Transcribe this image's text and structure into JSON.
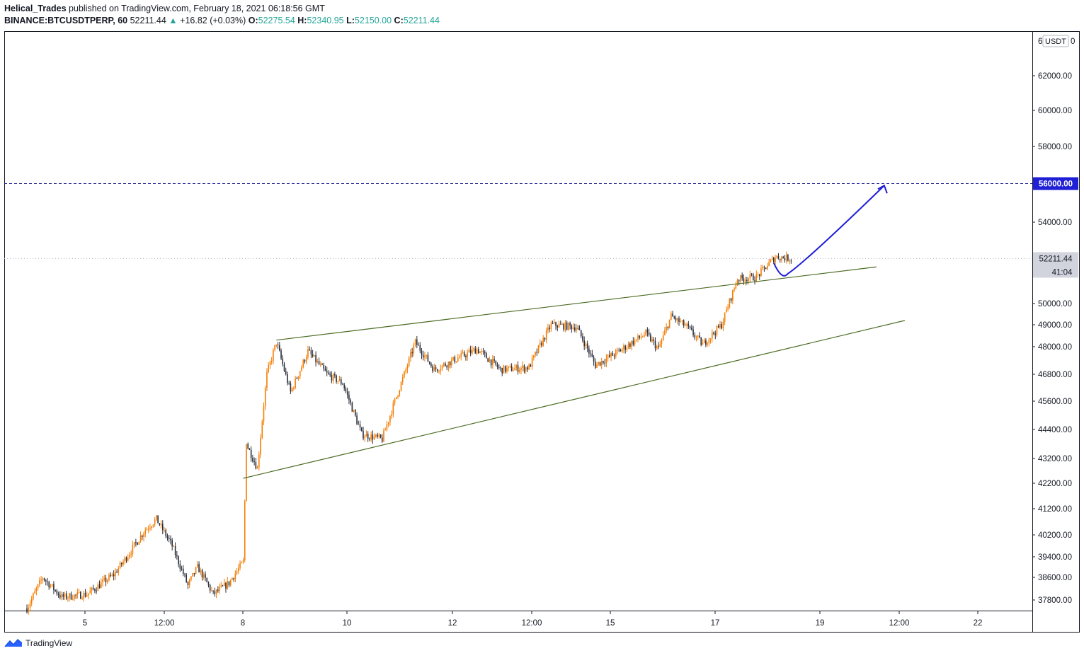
{
  "header": {
    "author": "Helical_Trades",
    "published": " published on TradingView.com, February 18, 2021 06:18:56 GMT",
    "symbol": "BINANCE:BTCUSDTPERP, 60",
    "last": "52211.44",
    "change_arrow": "▲",
    "change": "+16.82 (+0.03%)",
    "o_label": "O:",
    "o": "52275.54",
    "h_label": "H:",
    "h": "52340.95",
    "l_label": "L:",
    "l": "52150.00",
    "c_label": "C:",
    "c": "52211.44"
  },
  "footer": {
    "brand": "TradingView",
    "icon": "tradingview-logo-icon"
  },
  "colors": {
    "candle_up": "#f57c00",
    "candle_down": "#2a2e39",
    "trendline": "#4b6a22",
    "projection": "#1f1fd6",
    "target_line": "#1a1a8c",
    "target_label_bg": "#1f1fd6",
    "last_price_bg": "#d1d4dc"
  },
  "chart_data": {
    "type": "candlestick",
    "currency_label": "USDT",
    "y_ticks": [
      "62000.00",
      "60000.00",
      "58000.00",
      "54000.00",
      "50000.00",
      "49000.00",
      "48000.00",
      "46800.00",
      "45600.00",
      "44400.00",
      "43200.00",
      "42200.00",
      "41200.00",
      "40200.00",
      "39400.00",
      "38600.00",
      "37800.00"
    ],
    "y_top_tick_partial": "6",
    "x_ticks": [
      "5",
      "12:00",
      "8",
      "10",
      "12",
      "12:00",
      "15",
      "17",
      "19",
      "12:00",
      "22"
    ],
    "target_price": "56000.00",
    "last_price": "52211.44",
    "countdown": "41:04",
    "anchors": [
      {
        "t": 0,
        "p": 37500
      },
      {
        "t": 10,
        "p": 38600
      },
      {
        "t": 22,
        "p": 37900
      },
      {
        "t": 38,
        "p": 38000
      },
      {
        "t": 55,
        "p": 38700
      },
      {
        "t": 75,
        "p": 40400
      },
      {
        "t": 82,
        "p": 40800
      },
      {
        "t": 92,
        "p": 39800
      },
      {
        "t": 102,
        "p": 38300
      },
      {
        "t": 108,
        "p": 39000
      },
      {
        "t": 118,
        "p": 38000
      },
      {
        "t": 128,
        "p": 38400
      },
      {
        "t": 137,
        "p": 39200
      },
      {
        "t": 139,
        "p": 43800
      },
      {
        "t": 146,
        "p": 42800
      },
      {
        "t": 152,
        "p": 46800
      },
      {
        "t": 158,
        "p": 48200
      },
      {
        "t": 167,
        "p": 46000
      },
      {
        "t": 178,
        "p": 47800
      },
      {
        "t": 190,
        "p": 46800
      },
      {
        "t": 200,
        "p": 46400
      },
      {
        "t": 212,
        "p": 44200
      },
      {
        "t": 225,
        "p": 44000
      },
      {
        "t": 238,
        "p": 46600
      },
      {
        "t": 246,
        "p": 48200
      },
      {
        "t": 258,
        "p": 47000
      },
      {
        "t": 270,
        "p": 47400
      },
      {
        "t": 285,
        "p": 47900
      },
      {
        "t": 300,
        "p": 47000
      },
      {
        "t": 318,
        "p": 47100
      },
      {
        "t": 332,
        "p": 49000
      },
      {
        "t": 348,
        "p": 48900
      },
      {
        "t": 360,
        "p": 47200
      },
      {
        "t": 375,
        "p": 47800
      },
      {
        "t": 392,
        "p": 48600
      },
      {
        "t": 400,
        "p": 47900
      },
      {
        "t": 408,
        "p": 49400
      },
      {
        "t": 418,
        "p": 48900
      },
      {
        "t": 428,
        "p": 48100
      },
      {
        "t": 440,
        "p": 49000
      },
      {
        "t": 450,
        "p": 51200
      },
      {
        "t": 462,
        "p": 51300
      },
      {
        "t": 474,
        "p": 52300
      },
      {
        "t": 484,
        "p": 52211
      }
    ],
    "wedge_upper": [
      {
        "t": 158,
        "p": 48300
      },
      {
        "t": 538,
        "p": 51800
      }
    ],
    "wedge_lower": [
      {
        "t": 137,
        "p": 42400
      },
      {
        "t": 556,
        "p": 49200
      }
    ],
    "projection": [
      {
        "t": 473,
        "p": 52000
      },
      {
        "t": 480,
        "p": 51600
      },
      {
        "t": 488,
        "p": 52000
      },
      {
        "t": 543,
        "p": 55900
      }
    ]
  }
}
